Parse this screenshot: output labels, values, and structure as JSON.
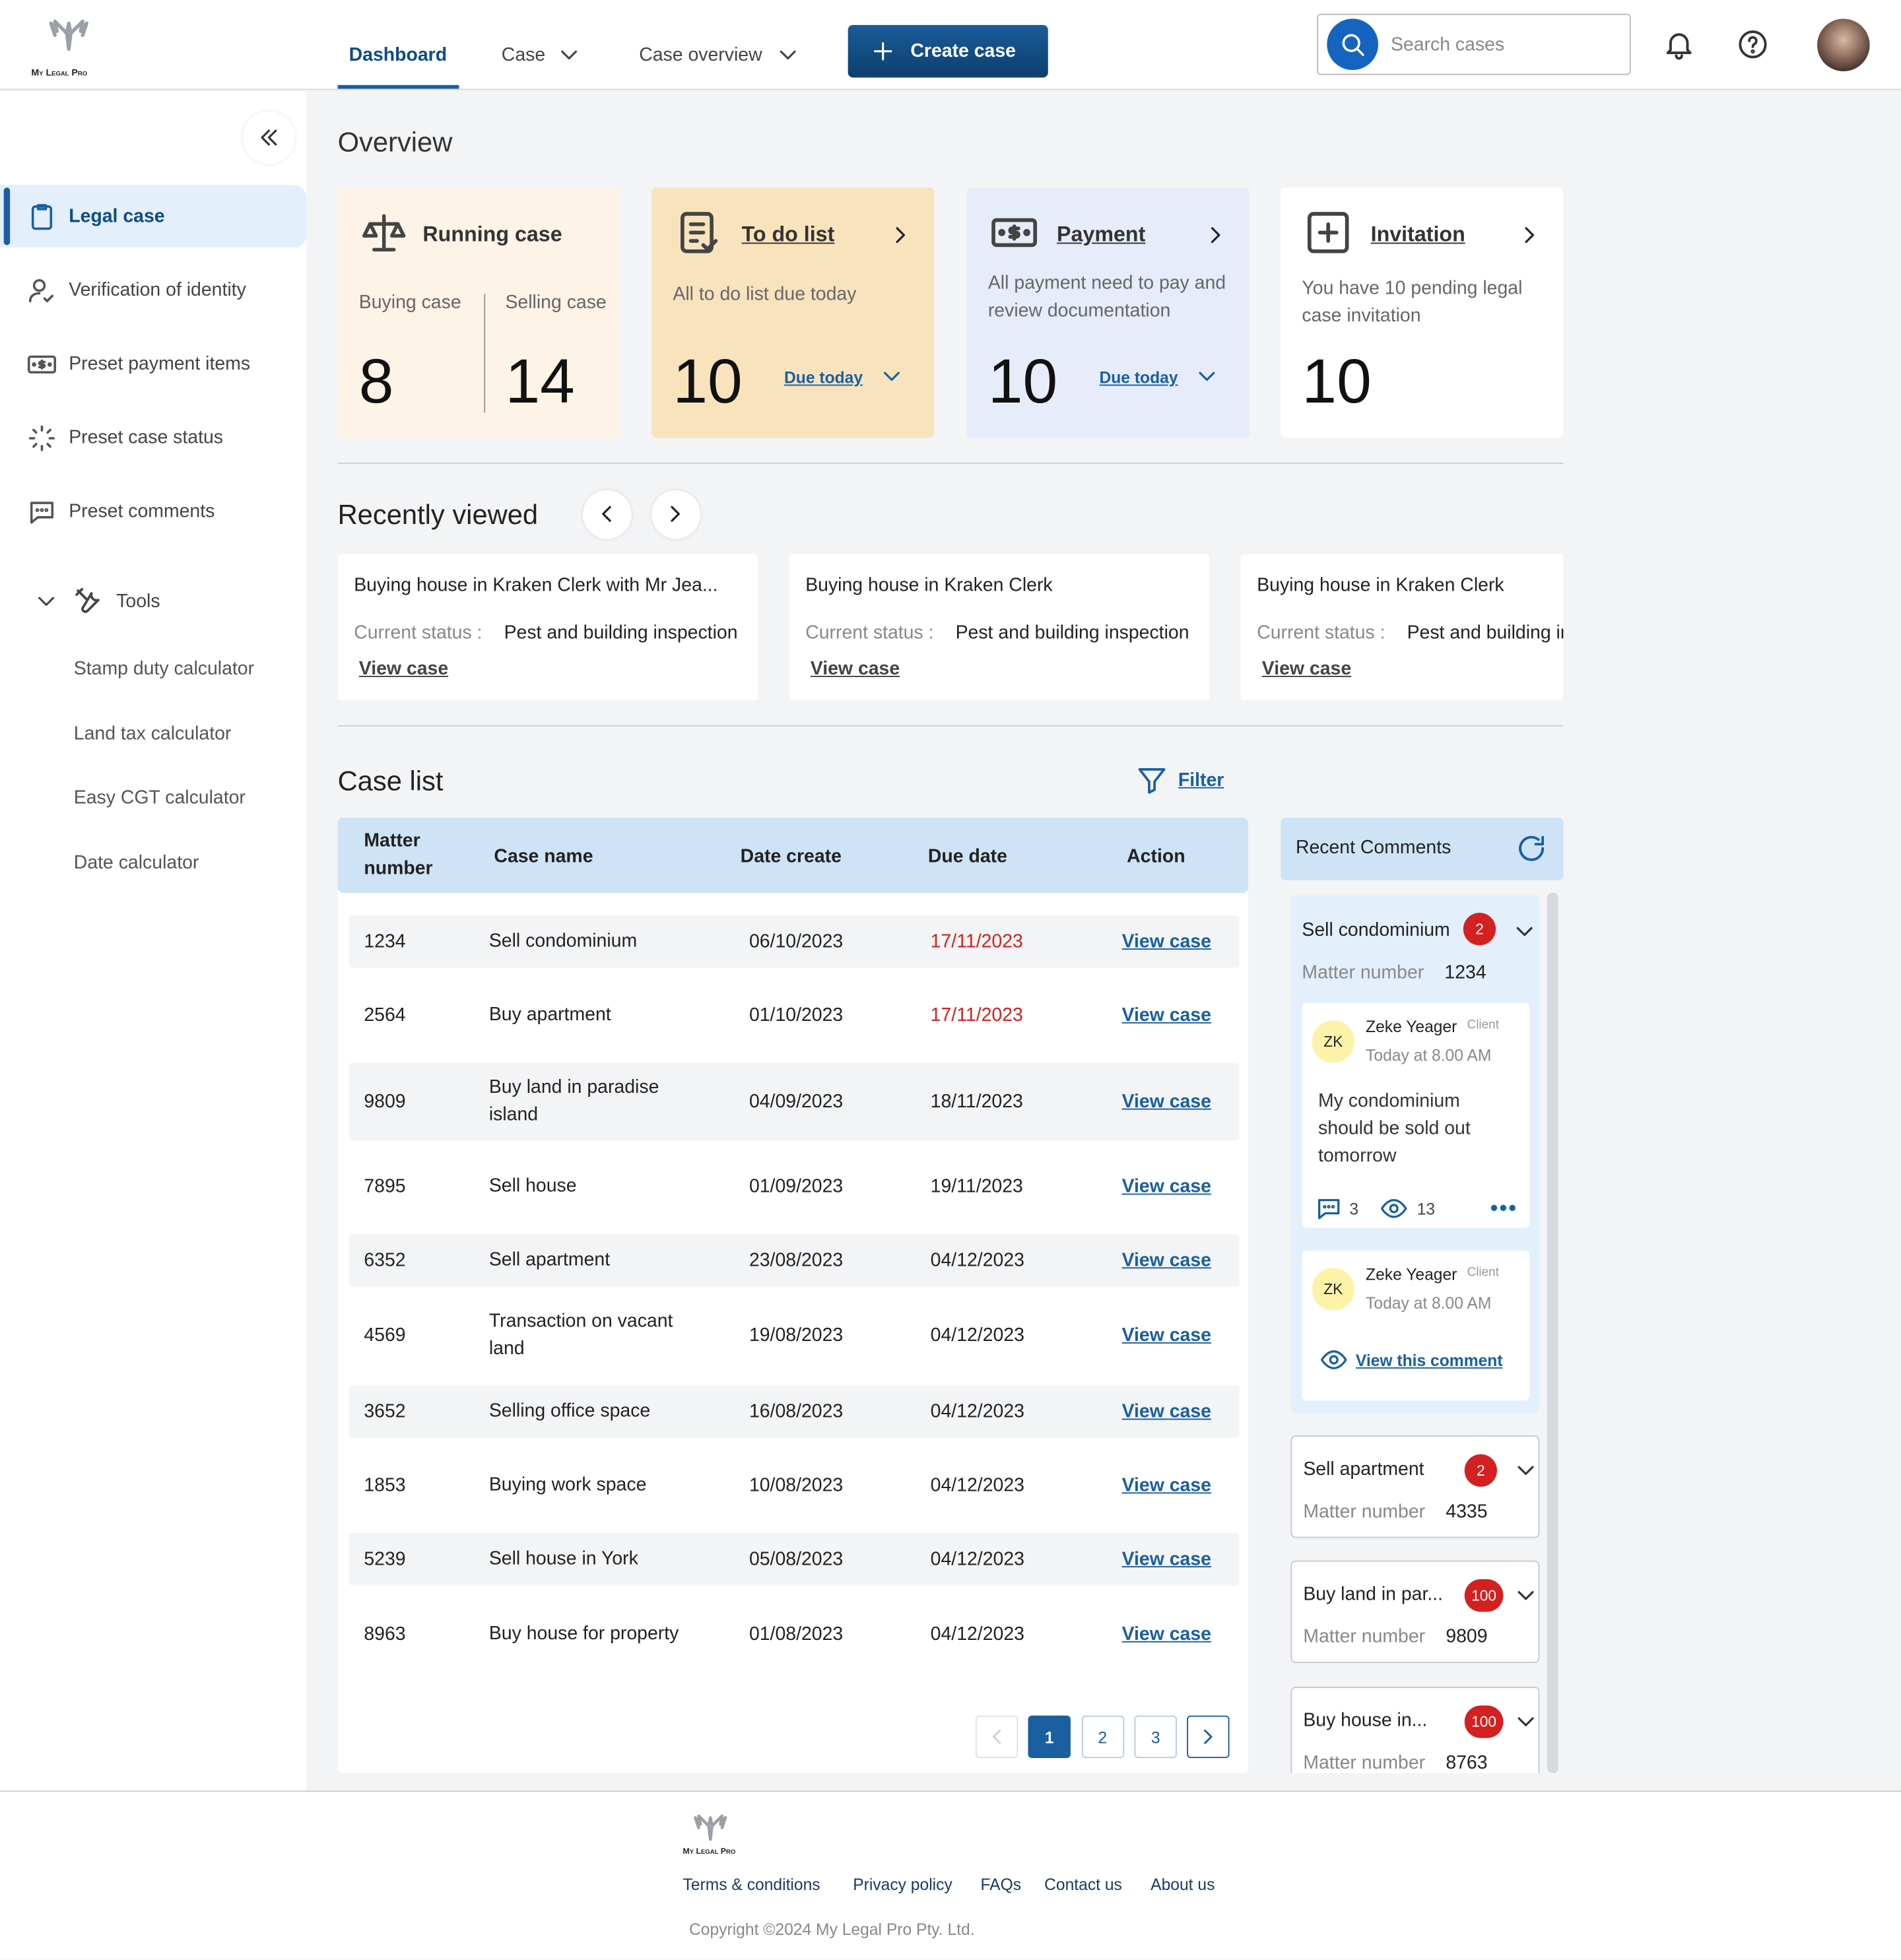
{
  "header": {
    "logo": "My Legal Pro",
    "nav": [
      "Dashboard",
      "Case",
      "Case overview"
    ],
    "create_button": "Create case",
    "search_placeholder": "Search cases"
  },
  "sidebar": {
    "menu": [
      "Legal case",
      "Verification of identity",
      "Preset payment items",
      "Preset case status",
      "Preset comments"
    ],
    "tools": {
      "label": "Tools",
      "items": [
        "Stamp duty calculator",
        "Land tax calculator",
        "Easy CGT calculator",
        "Date calculator"
      ]
    }
  },
  "overview": {
    "title": "Overview",
    "running_case": {
      "title": "Running case",
      "buying_label": "Buying case",
      "buying": 8,
      "selling_label": "Selling case",
      "selling": 14
    },
    "cards": [
      {
        "title": "To do list",
        "description": "All to do list due today",
        "value": 10,
        "link": "Due today"
      },
      {
        "title": "Payment",
        "description": "All payment need to pay and review documentation",
        "value": 10,
        "link": "Due today"
      },
      {
        "title": "Invitation",
        "description": "You have 10 pending legal case invitation",
        "value": 10
      }
    ]
  },
  "recently_viewed": {
    "title": "Recently viewed",
    "items": [
      {
        "name": "Buying house in Kraken Clerk with Mr Jea...",
        "status_label": "Current status :",
        "status": "Pest and building inspection",
        "link": "View case"
      },
      {
        "name": "Buying house in Kraken Clerk",
        "status_label": "Current status :",
        "status": "Pest and building inspection",
        "link": "View case"
      },
      {
        "name": "Buying house in Kraken Clerk",
        "status_label": "Current status :",
        "status": "Pest and building inspection",
        "link": "View case"
      }
    ]
  },
  "case_list": {
    "title": "Case list",
    "filter": "Filter",
    "columns": [
      "Matter number",
      "Case name",
      "Date create",
      "Due date",
      "Action"
    ],
    "action": "View case",
    "rows": [
      {
        "matter": 1234,
        "name": "Sell condominium",
        "created": "06/10/2023",
        "due": "17/11/2023",
        "overdue": true
      },
      {
        "matter": 2564,
        "name": "Buy apartment",
        "created": "01/10/2023",
        "due": "17/11/2023",
        "overdue": true
      },
      {
        "matter": 9809,
        "name": "Buy land in paradise island",
        "created": "04/09/2023",
        "due": "18/11/2023",
        "overdue": false
      },
      {
        "matter": 7895,
        "name": "Sell house",
        "created": "01/09/2023",
        "due": "19/11/2023",
        "overdue": false
      },
      {
        "matter": 6352,
        "name": "Sell apartment",
        "created": "23/08/2023",
        "due": "04/12/2023",
        "overdue": false
      },
      {
        "matter": 4569,
        "name": "Transaction on vacant land",
        "created": "19/08/2023",
        "due": "04/12/2023",
        "overdue": false
      },
      {
        "matter": 3652,
        "name": "Selling office space",
        "created": "16/08/2023",
        "due": "04/12/2023",
        "overdue": false
      },
      {
        "matter": 1853,
        "name": "Buying work space",
        "created": "10/08/2023",
        "due": "04/12/2023",
        "overdue": false
      },
      {
        "matter": 5239,
        "name": "Sell house in York",
        "created": "05/08/2023",
        "due": "04/12/2023",
        "overdue": false
      },
      {
        "matter": 8963,
        "name": "Buy house for property",
        "created": "01/08/2023",
        "due": "04/12/2023",
        "overdue": false
      }
    ],
    "pages": [
      1,
      2,
      3
    ],
    "current_page": 1
  },
  "recent_comments": {
    "title": "Recent Comments",
    "matter_label": "Matter number",
    "groups": [
      {
        "name": "Sell condominium",
        "count": 2,
        "matter": 1234,
        "comments": [
          {
            "initials": "ZK",
            "author": "Zeke Yeager",
            "role": "Client",
            "time": "Today at 8.00 AM",
            "text": "My condominium should be sold out tomorrow",
            "replies": 3,
            "views": 13
          },
          {
            "initials": "ZK",
            "author": "Zeke Yeager",
            "role": "Client",
            "time": "Today at 8.00 AM",
            "link": "View this comment"
          }
        ]
      },
      {
        "name": "Sell apartment",
        "count": 2,
        "matter": 4335
      },
      {
        "name": "Buy land in par...",
        "count": 100,
        "matter": 9809
      },
      {
        "name": "Buy house in...",
        "count": 100,
        "matter": 8763
      }
    ]
  },
  "footer": {
    "logo": "My Legal Pro",
    "links": [
      "Terms & conditions",
      "Privacy policy",
      "FAQs",
      "Contact us",
      "About us"
    ],
    "copyright": "Copyright ©2024 My Legal Pro Pty. Ltd."
  }
}
